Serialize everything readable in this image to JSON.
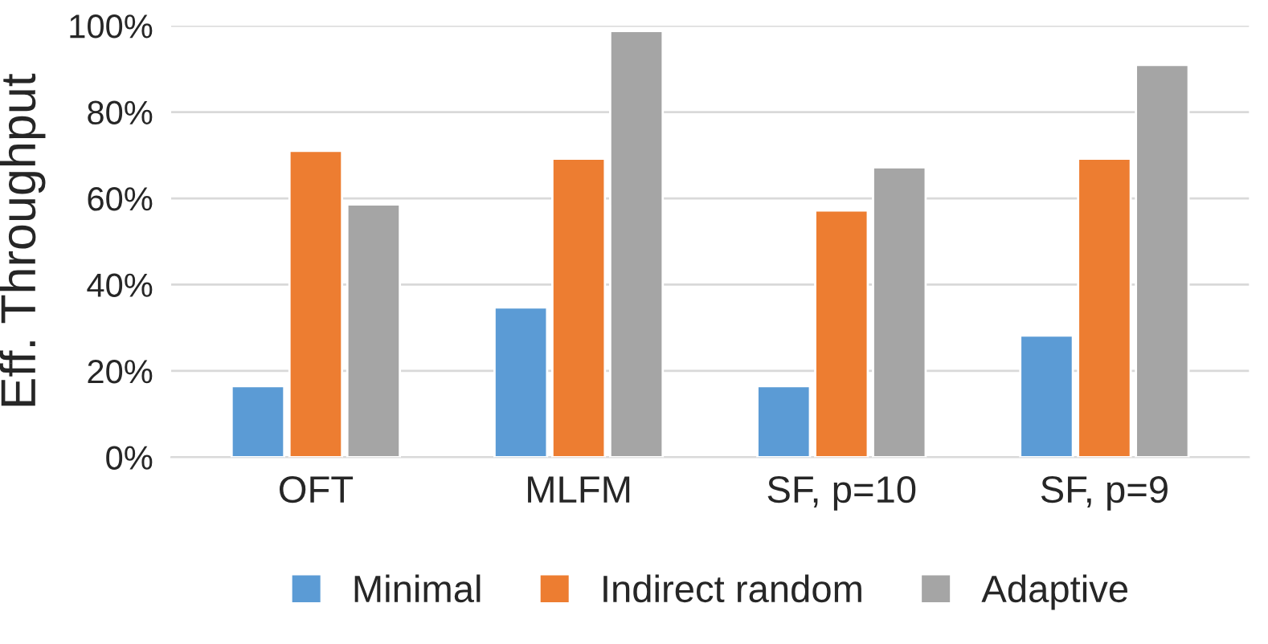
{
  "chart_data": {
    "type": "bar",
    "ylabel": "Eff. Throughput",
    "categories": [
      "OFT",
      "MLFM",
      "SF, p=10",
      "SF, p=9"
    ],
    "series": [
      {
        "name": "Minimal",
        "color": "#5b9bd5",
        "values": [
          16.5,
          34.7,
          16.5,
          28.2
        ]
      },
      {
        "name": "Indirect random",
        "color": "#ed7d31",
        "values": [
          71,
          69.2,
          57.2,
          69.2
        ]
      },
      {
        "name": "Adaptive",
        "color": "#a5a5a5",
        "values": [
          58.6,
          98.8,
          67.2,
          90.9
        ]
      }
    ],
    "ylim": [
      0,
      100
    ],
    "yticks": [
      {
        "value": 0,
        "label": "0%"
      },
      {
        "value": 20,
        "label": "20%"
      },
      {
        "value": 40,
        "label": "40%"
      },
      {
        "value": 60,
        "label": "60%"
      },
      {
        "value": 80,
        "label": "80%"
      },
      {
        "value": 100,
        "label": "100%"
      }
    ],
    "grid": "y",
    "legend": "bottom"
  }
}
